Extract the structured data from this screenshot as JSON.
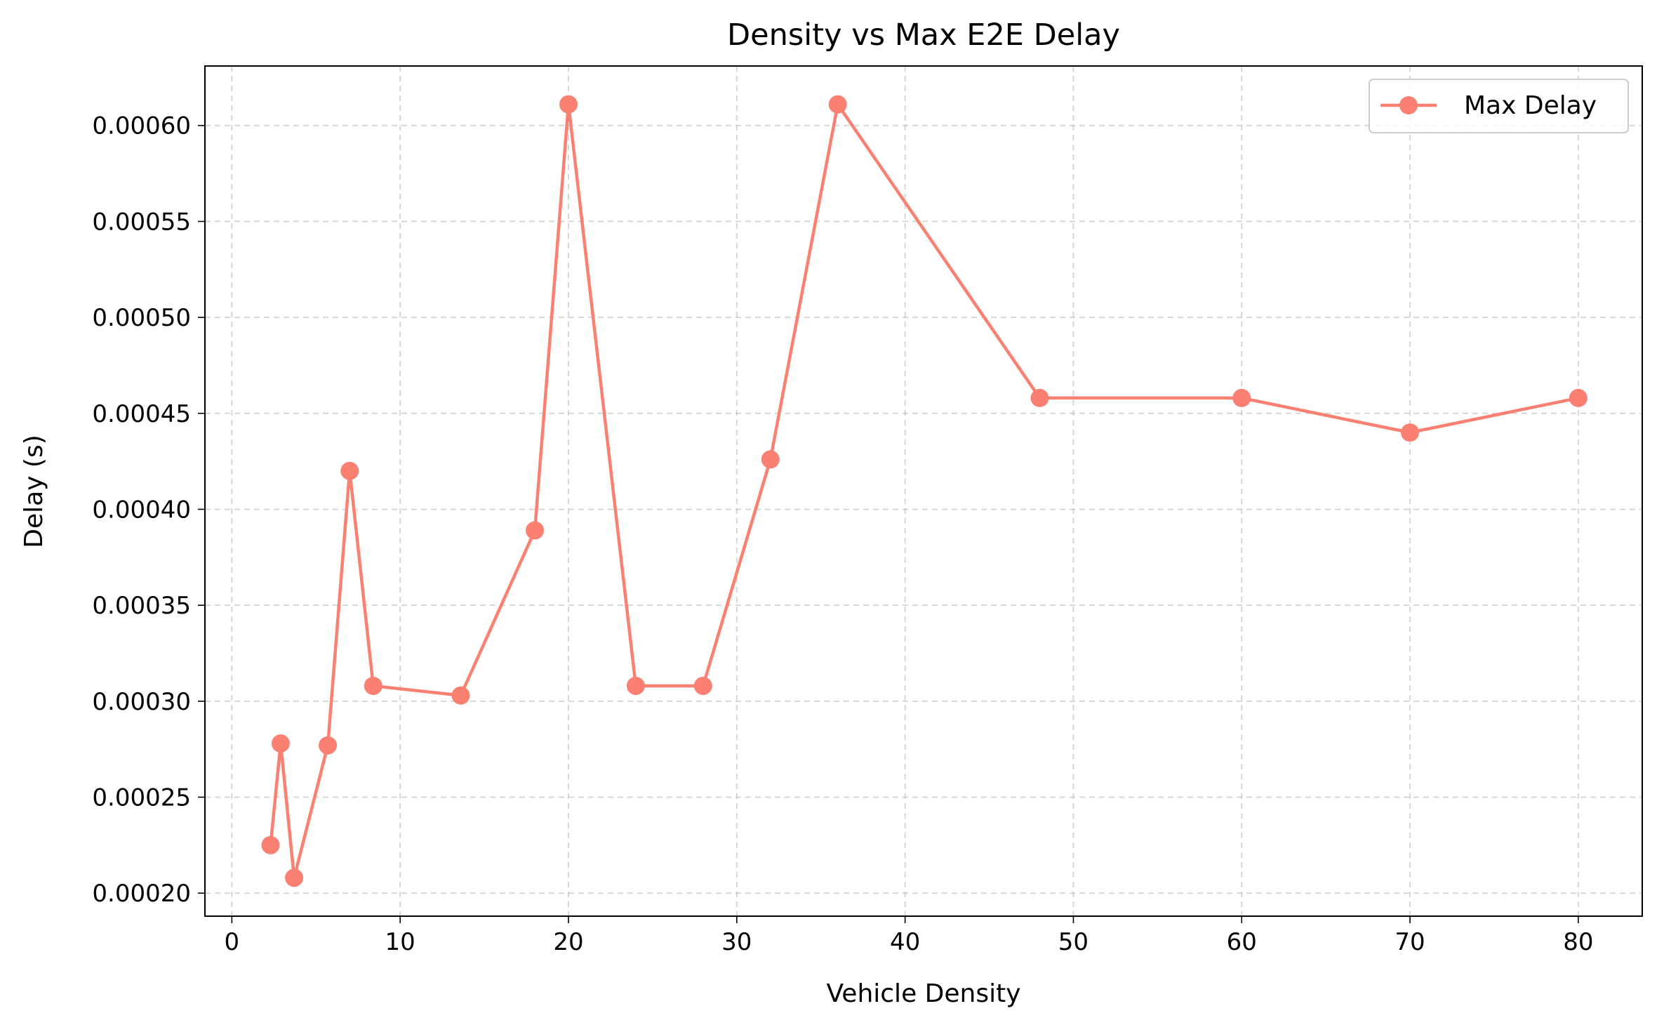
{
  "chart_data": {
    "type": "line",
    "title": "Density vs Max E2E Delay",
    "xlabel": "Vehicle Density",
    "ylabel": "Delay (s)",
    "xlim": [
      -1.6,
      83.8
    ],
    "ylim": [
      0.000188,
      0.000631
    ],
    "x_ticks": [
      0,
      10,
      20,
      30,
      40,
      50,
      60,
      70,
      80
    ],
    "y_ticks": [
      0.0002,
      0.00025,
      0.0003,
      0.00035,
      0.0004,
      0.00045,
      0.0005,
      0.00055,
      0.0006
    ],
    "x_tick_labels": [
      "0",
      "10",
      "20",
      "30",
      "40",
      "50",
      "60",
      "70",
      "80"
    ],
    "y_tick_labels": [
      "0.00020",
      "0.00025",
      "0.00030",
      "0.00035",
      "0.00040",
      "0.00045",
      "0.00050",
      "0.00055",
      "0.00060"
    ],
    "grid": true,
    "legend_position": "top-right",
    "series": [
      {
        "name": "Max Delay",
        "color": "#fa8072",
        "marker": "circle",
        "x": [
          2.3,
          2.9,
          3.7,
          5.7,
          7.0,
          8.4,
          13.6,
          18.0,
          20.0,
          24.0,
          28.0,
          32.0,
          36.0,
          48.0,
          60.0,
          70.0,
          80.0
        ],
        "y": [
          0.000225,
          0.000278,
          0.000208,
          0.000277,
          0.00042,
          0.000308,
          0.000303,
          0.000389,
          0.000611,
          0.000308,
          0.000308,
          0.000426,
          0.000611,
          0.000458,
          0.000458,
          0.00044,
          0.000458
        ]
      }
    ]
  }
}
